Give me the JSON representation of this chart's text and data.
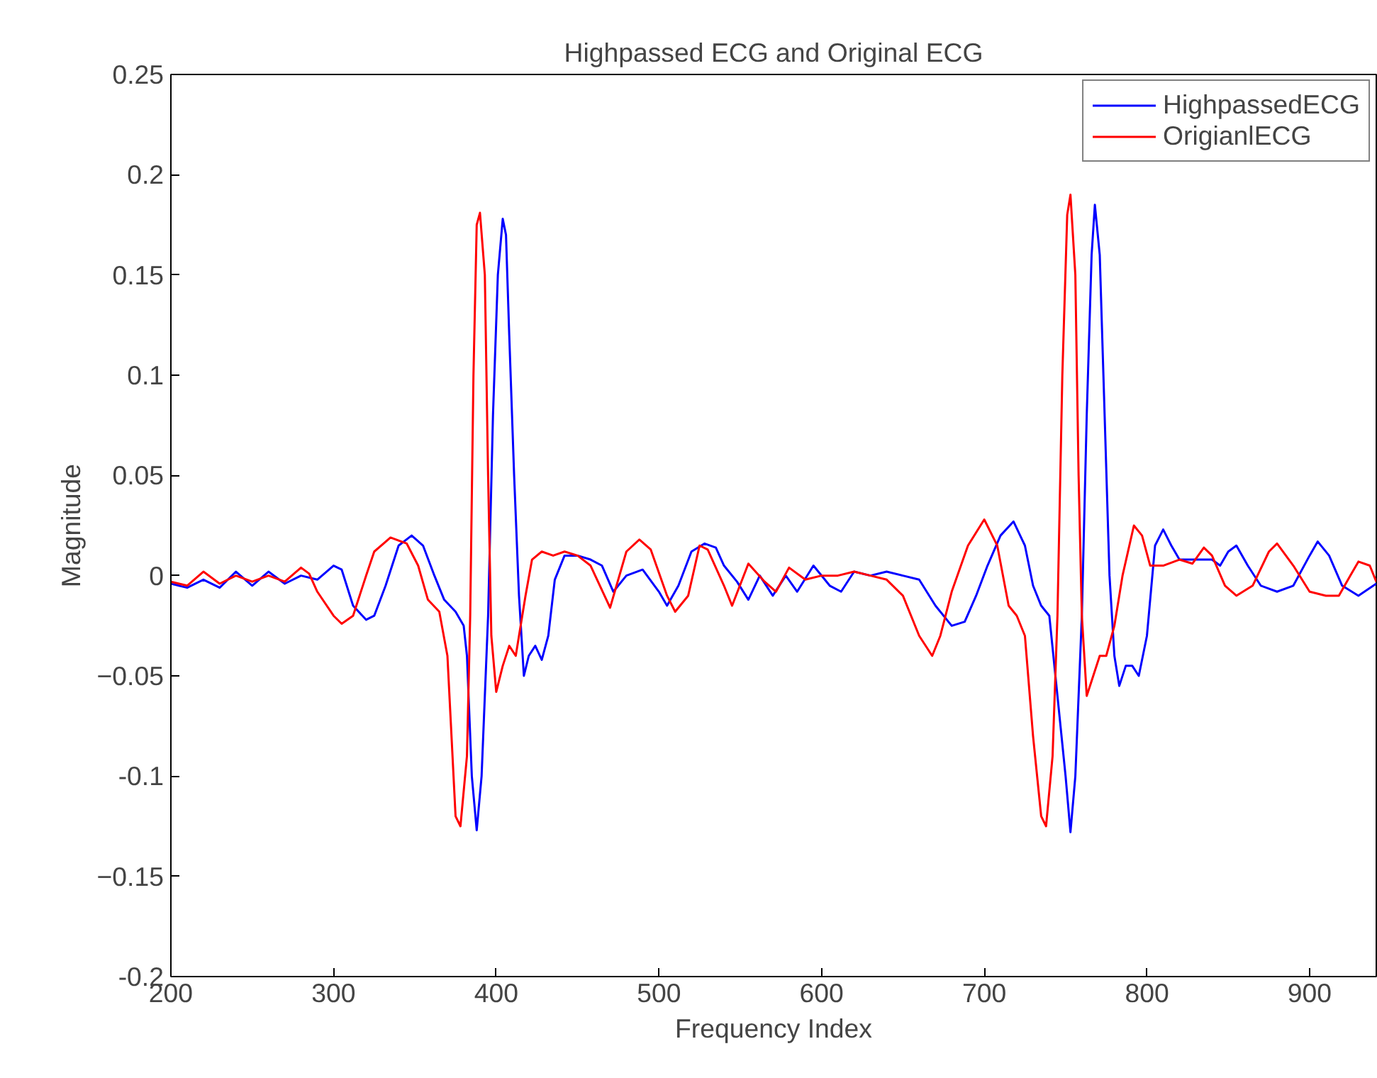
{
  "chart_data": {
    "type": "line",
    "title": "Highpassed ECG and Original ECG",
    "xlabel": "Frequency Index",
    "ylabel": "Magnitude",
    "xlim": [
      200,
      941
    ],
    "xticks": [
      200,
      300,
      400,
      500,
      600,
      700,
      800,
      900
    ],
    "ylim": [
      -0.2,
      0.25
    ],
    "yticks": [
      {
        "value": -0.2,
        "label": "-0.2"
      },
      -0.15,
      {
        "value": -0.1,
        "label": "-0.1"
      },
      -0.05,
      0,
      0.05,
      {
        "value": 0.1,
        "label": "0.1"
      },
      0.15,
      {
        "value": 0.2,
        "label": "0.2"
      },
      0.25
    ],
    "grid": false,
    "legend": "top right",
    "marker": "none",
    "line_style": "solid",
    "series": [
      {
        "name": "HighpassedECG",
        "color": "#0000ff",
        "x": [
          200,
          210,
          220,
          230,
          240,
          250,
          260,
          270,
          280,
          290,
          300,
          305,
          312,
          320,
          325,
          332,
          340,
          348,
          355,
          362,
          368,
          375,
          380,
          382,
          385,
          388,
          391,
          395,
          398,
          401,
          404,
          406,
          408,
          411,
          414,
          417,
          420,
          424,
          428,
          432,
          436,
          442,
          450,
          458,
          465,
          472,
          480,
          490,
          500,
          505,
          512,
          520,
          528,
          535,
          540,
          548,
          555,
          562,
          570,
          578,
          585,
          595,
          605,
          612,
          620,
          630,
          640,
          650,
          660,
          670,
          680,
          688,
          695,
          702,
          710,
          718,
          725,
          730,
          735,
          740,
          745,
          750,
          753,
          756,
          760,
          763,
          766,
          768,
          771,
          774,
          777,
          780,
          783,
          787,
          791,
          795,
          800,
          805,
          810,
          815,
          820,
          830,
          840,
          845,
          850,
          855,
          862,
          870,
          880,
          890,
          900,
          905,
          912,
          920,
          930,
          941
        ],
        "values": [
          -0.004,
          -0.006,
          -0.002,
          -0.006,
          0.002,
          -0.005,
          0.002,
          -0.004,
          0.0,
          -0.002,
          0.005,
          0.003,
          -0.015,
          -0.022,
          -0.02,
          -0.005,
          0.015,
          0.02,
          0.015,
          0.0,
          -0.012,
          -0.018,
          -0.025,
          -0.04,
          -0.1,
          -0.127,
          -0.1,
          -0.02,
          0.08,
          0.15,
          0.178,
          0.17,
          0.12,
          0.05,
          -0.01,
          -0.05,
          -0.04,
          -0.035,
          -0.042,
          -0.03,
          -0.002,
          0.01,
          0.01,
          0.008,
          0.005,
          -0.008,
          0.0,
          0.003,
          -0.008,
          -0.015,
          -0.005,
          0.012,
          0.016,
          0.014,
          0.005,
          -0.003,
          -0.012,
          0.0,
          -0.01,
          0.0,
          -0.008,
          0.005,
          -0.005,
          -0.008,
          0.002,
          0.0,
          0.002,
          0.0,
          -0.002,
          -0.015,
          -0.025,
          -0.023,
          -0.01,
          0.005,
          0.02,
          0.027,
          0.015,
          -0.005,
          -0.015,
          -0.02,
          -0.06,
          -0.1,
          -0.128,
          -0.1,
          -0.02,
          0.08,
          0.16,
          0.185,
          0.16,
          0.08,
          0.0,
          -0.04,
          -0.055,
          -0.045,
          -0.045,
          -0.05,
          -0.03,
          0.015,
          0.023,
          0.015,
          0.008,
          0.008,
          0.008,
          0.005,
          0.012,
          0.015,
          0.005,
          -0.005,
          -0.008,
          -0.005,
          0.01,
          0.017,
          0.01,
          -0.005,
          -0.01,
          -0.004
        ]
      },
      {
        "name": "OrigianlECG",
        "color": "#ff0000",
        "x": [
          200,
          210,
          220,
          230,
          240,
          250,
          260,
          270,
          280,
          285,
          290,
          300,
          305,
          312,
          320,
          325,
          335,
          345,
          352,
          358,
          365,
          370,
          375,
          378,
          382,
          384,
          386,
          388,
          390,
          393,
          395,
          397,
          400,
          404,
          408,
          412,
          418,
          422,
          428,
          435,
          442,
          450,
          458,
          470,
          480,
          488,
          495,
          505,
          510,
          518,
          525,
          530,
          540,
          545,
          555,
          565,
          572,
          580,
          590,
          600,
          610,
          620,
          630,
          640,
          650,
          660,
          668,
          673,
          680,
          690,
          700,
          708,
          715,
          720,
          725,
          730,
          735,
          738,
          742,
          745,
          748,
          751,
          753,
          756,
          758,
          760,
          763,
          767,
          771,
          775,
          780,
          785,
          792,
          797,
          802,
          810,
          820,
          828,
          835,
          840,
          848,
          855,
          865,
          875,
          880,
          890,
          900,
          910,
          918,
          925,
          930,
          937,
          941
        ],
        "values": [
          -0.003,
          -0.005,
          0.002,
          -0.004,
          0.0,
          -0.003,
          0.0,
          -0.003,
          0.004,
          0.001,
          -0.008,
          -0.02,
          -0.024,
          -0.02,
          0.0,
          0.012,
          0.019,
          0.016,
          0.005,
          -0.012,
          -0.018,
          -0.04,
          -0.12,
          -0.125,
          -0.09,
          -0.02,
          0.1,
          0.175,
          0.181,
          0.15,
          0.05,
          -0.03,
          -0.058,
          -0.045,
          -0.035,
          -0.04,
          -0.01,
          0.008,
          0.012,
          0.01,
          0.012,
          0.01,
          0.005,
          -0.016,
          0.012,
          0.018,
          0.013,
          -0.01,
          -0.018,
          -0.01,
          0.015,
          0.013,
          -0.005,
          -0.015,
          0.006,
          -0.003,
          -0.008,
          0.004,
          -0.002,
          0.0,
          0.0,
          0.002,
          0.0,
          -0.002,
          -0.01,
          -0.03,
          -0.04,
          -0.03,
          -0.008,
          0.015,
          0.028,
          0.015,
          -0.015,
          -0.02,
          -0.03,
          -0.08,
          -0.12,
          -0.125,
          -0.09,
          -0.02,
          0.1,
          0.18,
          0.19,
          0.15,
          0.05,
          -0.02,
          -0.06,
          -0.05,
          -0.04,
          -0.04,
          -0.025,
          0.0,
          0.025,
          0.02,
          0.005,
          0.005,
          0.008,
          0.006,
          0.014,
          0.01,
          -0.005,
          -0.01,
          -0.005,
          0.012,
          0.016,
          0.005,
          -0.008,
          -0.01,
          -0.01,
          0.0,
          0.007,
          0.005,
          -0.003
        ]
      }
    ]
  }
}
